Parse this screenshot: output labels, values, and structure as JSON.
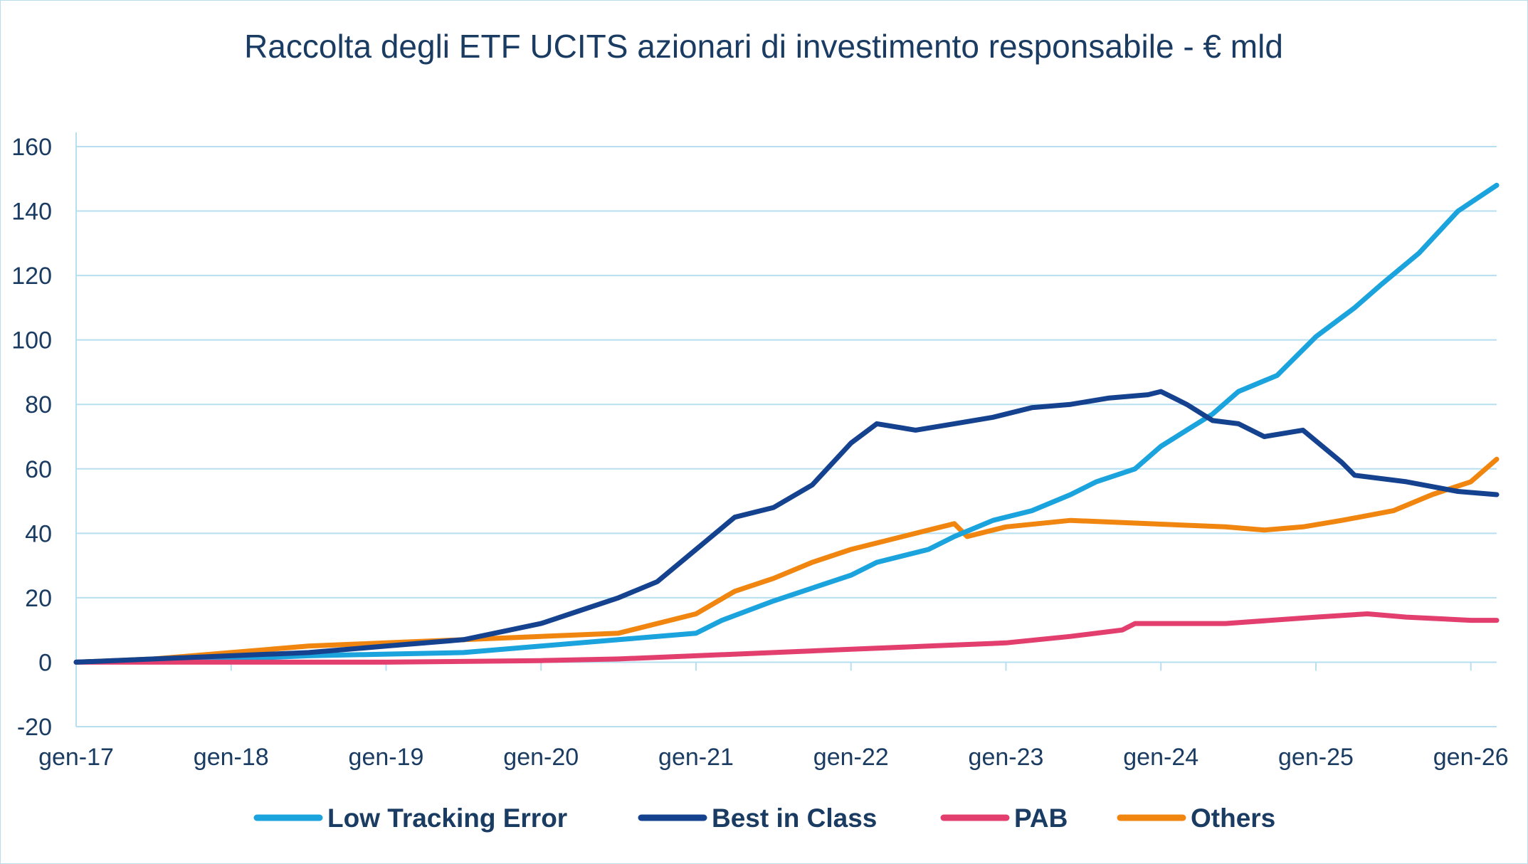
{
  "chart_data": {
    "type": "line",
    "title": "Raccolta degli ETF UCITS azionari di investimento responsabile - € mld",
    "xlabel": "",
    "ylabel": "",
    "ylim": [
      -20,
      160
    ],
    "yticks": [
      -20,
      0,
      20,
      40,
      60,
      80,
      100,
      120,
      140,
      160
    ],
    "xlim": [
      "2017-01",
      "2026-03"
    ],
    "xticks": [
      {
        "date": "2017-01",
        "label": "gen-17"
      },
      {
        "date": "2018-01",
        "label": "gen-18"
      },
      {
        "date": "2019-01",
        "label": "gen-19"
      },
      {
        "date": "2020-01",
        "label": "gen-20"
      },
      {
        "date": "2021-01",
        "label": "gen-21"
      },
      {
        "date": "2022-01",
        "label": "gen-22"
      },
      {
        "date": "2023-01",
        "label": "gen-23"
      },
      {
        "date": "2024-01",
        "label": "gen-24"
      },
      {
        "date": "2025-01",
        "label": "gen-25"
      },
      {
        "date": "2026-01",
        "label": "gen-26"
      }
    ],
    "grid": true,
    "legend_position": "bottom",
    "series": [
      {
        "name": "Low Tracking Error",
        "color": "#1aa3dc",
        "points": [
          [
            "2017-01",
            0
          ],
          [
            "2017-07",
            0.5
          ],
          [
            "2018-01",
            1
          ],
          [
            "2018-07",
            2
          ],
          [
            "2019-01",
            2.5
          ],
          [
            "2019-07",
            3
          ],
          [
            "2020-01",
            5
          ],
          [
            "2020-07",
            7
          ],
          [
            "2021-01",
            9
          ],
          [
            "2021-03",
            13
          ],
          [
            "2021-07",
            19
          ],
          [
            "2021-10",
            23
          ],
          [
            "2022-01",
            27
          ],
          [
            "2022-03",
            31
          ],
          [
            "2022-07",
            35
          ],
          [
            "2022-09",
            39
          ],
          [
            "2022-12",
            44
          ],
          [
            "2023-03",
            47
          ],
          [
            "2023-06",
            52
          ],
          [
            "2023-08",
            56
          ],
          [
            "2023-11",
            60
          ],
          [
            "2024-01",
            67
          ],
          [
            "2024-03",
            72
          ],
          [
            "2024-05",
            77
          ],
          [
            "2024-07",
            84
          ],
          [
            "2024-10",
            89
          ],
          [
            "2025-01",
            101
          ],
          [
            "2025-04",
            110
          ],
          [
            "2025-06",
            117
          ],
          [
            "2025-09",
            127
          ],
          [
            "2025-12",
            140
          ],
          [
            "2026-03",
            148
          ]
        ]
      },
      {
        "name": "Best in Class",
        "color": "#15428f",
        "points": [
          [
            "2017-01",
            0
          ],
          [
            "2017-07",
            1
          ],
          [
            "2018-01",
            2
          ],
          [
            "2018-07",
            3
          ],
          [
            "2019-01",
            5
          ],
          [
            "2019-07",
            7
          ],
          [
            "2020-01",
            12
          ],
          [
            "2020-04",
            16
          ],
          [
            "2020-07",
            20
          ],
          [
            "2020-10",
            25
          ],
          [
            "2021-01",
            35
          ],
          [
            "2021-04",
            45
          ],
          [
            "2021-07",
            48
          ],
          [
            "2021-10",
            55
          ],
          [
            "2022-01",
            68
          ],
          [
            "2022-03",
            74
          ],
          [
            "2022-06",
            72
          ],
          [
            "2022-09",
            74
          ],
          [
            "2022-12",
            76
          ],
          [
            "2023-03",
            79
          ],
          [
            "2023-06",
            80
          ],
          [
            "2023-09",
            82
          ],
          [
            "2023-12",
            83
          ],
          [
            "2024-01",
            84
          ],
          [
            "2024-03",
            80
          ],
          [
            "2024-05",
            75
          ],
          [
            "2024-07",
            74
          ],
          [
            "2024-09",
            70
          ],
          [
            "2024-12",
            72
          ],
          [
            "2025-03",
            62
          ],
          [
            "2025-04",
            58
          ],
          [
            "2025-08",
            56
          ],
          [
            "2025-12",
            53
          ],
          [
            "2026-03",
            52
          ]
        ]
      },
      {
        "name": "PAB",
        "color": "#e33f6e",
        "points": [
          [
            "2017-01",
            0
          ],
          [
            "2018-01",
            0
          ],
          [
            "2019-01",
            0
          ],
          [
            "2020-01",
            0.5
          ],
          [
            "2020-07",
            1
          ],
          [
            "2021-01",
            2
          ],
          [
            "2021-07",
            3
          ],
          [
            "2022-01",
            4
          ],
          [
            "2022-07",
            5
          ],
          [
            "2023-01",
            6
          ],
          [
            "2023-06",
            8
          ],
          [
            "2023-10",
            10
          ],
          [
            "2023-11",
            12
          ],
          [
            "2024-06",
            12
          ],
          [
            "2025-01",
            14
          ],
          [
            "2025-05",
            15
          ],
          [
            "2025-08",
            14
          ],
          [
            "2026-01",
            13
          ],
          [
            "2026-03",
            13
          ]
        ]
      },
      {
        "name": "Others",
        "color": "#f0860f",
        "points": [
          [
            "2017-01",
            0
          ],
          [
            "2017-07",
            1
          ],
          [
            "2018-01",
            3
          ],
          [
            "2018-07",
            5
          ],
          [
            "2019-01",
            6
          ],
          [
            "2019-07",
            7
          ],
          [
            "2020-01",
            8
          ],
          [
            "2020-07",
            9
          ],
          [
            "2021-01",
            15
          ],
          [
            "2021-04",
            22
          ],
          [
            "2021-07",
            26
          ],
          [
            "2021-10",
            31
          ],
          [
            "2022-01",
            35
          ],
          [
            "2022-04",
            38
          ],
          [
            "2022-07",
            41
          ],
          [
            "2022-09",
            43
          ],
          [
            "2022-10",
            39
          ],
          [
            "2023-01",
            42
          ],
          [
            "2023-06",
            44
          ],
          [
            "2023-12",
            43
          ],
          [
            "2024-06",
            42
          ],
          [
            "2024-09",
            41
          ],
          [
            "2024-12",
            42
          ],
          [
            "2025-03",
            44
          ],
          [
            "2025-07",
            47
          ],
          [
            "2025-10",
            52
          ],
          [
            "2026-01",
            56
          ],
          [
            "2026-03",
            63
          ]
        ]
      }
    ]
  }
}
